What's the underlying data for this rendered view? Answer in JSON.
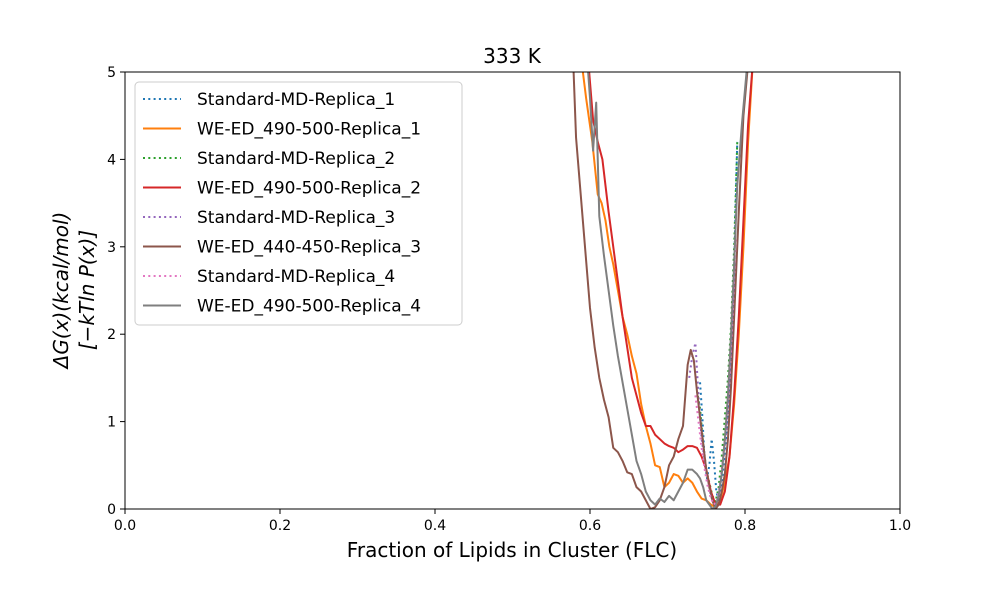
{
  "chart_data": {
    "type": "line",
    "title": "333 K",
    "xlabel": "Fraction of Lipids in Cluster (FLC)",
    "ylabel_line1": "ΔG(x)(kcal/mol)",
    "ylabel_line2": "[−kTln P(x)]",
    "xlim": [
      0.0,
      1.0
    ],
    "ylim": [
      0,
      5
    ],
    "xticks": [
      "0.0",
      "0.2",
      "0.4",
      "0.6",
      "0.8",
      "1.0"
    ],
    "yticks": [
      "0",
      "1",
      "2",
      "3",
      "4",
      "5"
    ],
    "grid": false,
    "legend_position": "top-left",
    "series": [
      {
        "name": "Standard-MD-Replica_1",
        "color": "#1f77b4",
        "style": "dotted",
        "x": [
          0.742,
          0.745,
          0.748,
          0.751,
          0.754,
          0.757,
          0.76,
          0.763,
          0.766,
          0.769,
          0.772,
          0.775,
          0.778,
          0.781,
          0.785,
          0.79
        ],
        "y": [
          1.45,
          1.05,
          0.55,
          0.35,
          0.5,
          0.8,
          0.55,
          0.2,
          0.1,
          0.2,
          0.45,
          0.75,
          1.1,
          1.6,
          2.4,
          4.2
        ]
      },
      {
        "name": "WE-ED_490-500-Replica_1",
        "color": "#ff7f0e",
        "style": "solid",
        "x": [
          0.588,
          0.595,
          0.603,
          0.61,
          0.615,
          0.62,
          0.625,
          0.63,
          0.636,
          0.642,
          0.648,
          0.654,
          0.66,
          0.666,
          0.672,
          0.678,
          0.684,
          0.69,
          0.696,
          0.702,
          0.708,
          0.714,
          0.72,
          0.726,
          0.732,
          0.738,
          0.744,
          0.75,
          0.756,
          0.762,
          0.768,
          0.774,
          0.78,
          0.786,
          0.792,
          0.798,
          0.804,
          0.81
        ],
        "y": [
          5.2,
          4.7,
          4.2,
          3.6,
          3.5,
          3.3,
          3.0,
          2.8,
          2.5,
          2.2,
          2.0,
          1.75,
          1.55,
          1.2,
          0.95,
          0.75,
          0.5,
          0.48,
          0.25,
          0.3,
          0.4,
          0.38,
          0.3,
          0.35,
          0.3,
          0.2,
          0.12,
          0.1,
          0.05,
          0.02,
          0.1,
          0.3,
          0.6,
          1.2,
          2.0,
          3.0,
          4.2,
          5.1
        ]
      },
      {
        "name": "Standard-MD-Replica_2",
        "color": "#2ca02c",
        "style": "dotted",
        "x": [
          0.738,
          0.742,
          0.746,
          0.75,
          0.754,
          0.758,
          0.762,
          0.766,
          0.77,
          0.774,
          0.778,
          0.782,
          0.786,
          0.79
        ],
        "y": [
          1.35,
          1.15,
          0.75,
          0.45,
          0.3,
          0.15,
          0.08,
          0.25,
          0.6,
          1.05,
          1.5,
          2.1,
          3.0,
          4.2
        ]
      },
      {
        "name": "WE-ED_490-500-Replica_2",
        "color": "#d62728",
        "style": "solid",
        "x": [
          0.598,
          0.604,
          0.61,
          0.616,
          0.62,
          0.624,
          0.63,
          0.636,
          0.642,
          0.648,
          0.654,
          0.66,
          0.666,
          0.672,
          0.678,
          0.684,
          0.69,
          0.696,
          0.702,
          0.708,
          0.714,
          0.72,
          0.726,
          0.732,
          0.738,
          0.744,
          0.75,
          0.756,
          0.762,
          0.768,
          0.774,
          0.78,
          0.786,
          0.792,
          0.798,
          0.804,
          0.81
        ],
        "y": [
          5.1,
          4.45,
          4.2,
          4.0,
          3.7,
          3.4,
          3.0,
          2.6,
          2.2,
          1.85,
          1.5,
          1.3,
          1.1,
          0.95,
          0.95,
          0.85,
          0.8,
          0.75,
          0.72,
          0.7,
          0.65,
          0.68,
          0.72,
          0.72,
          0.7,
          0.6,
          0.45,
          0.2,
          0.05,
          0.05,
          0.2,
          0.6,
          1.3,
          2.2,
          3.3,
          4.4,
          5.1
        ]
      },
      {
        "name": "Standard-MD-Replica_3",
        "color": "#9467bd",
        "style": "dotted",
        "x": [
          0.728,
          0.732,
          0.736,
          0.74,
          0.744,
          0.748,
          0.752,
          0.756,
          0.76,
          0.764,
          0.768,
          0.772,
          0.776,
          0.78,
          0.784,
          0.788
        ],
        "y": [
          1.5,
          1.75,
          1.9,
          1.3,
          0.8,
          0.55,
          0.35,
          0.15,
          0.05,
          0.08,
          0.25,
          0.55,
          0.9,
          1.4,
          2.0,
          2.8
        ]
      },
      {
        "name": "WE-ED_440-450-Replica_3",
        "color": "#8c564b",
        "style": "solid",
        "x": [
          0.578,
          0.582,
          0.588,
          0.594,
          0.6,
          0.606,
          0.612,
          0.618,
          0.624,
          0.63,
          0.636,
          0.642,
          0.648,
          0.654,
          0.66,
          0.666,
          0.672,
          0.678,
          0.684,
          0.69,
          0.696,
          0.702,
          0.708,
          0.714,
          0.72,
          0.726,
          0.73,
          0.734,
          0.738,
          0.742,
          0.746,
          0.75,
          0.754,
          0.758,
          0.762,
          0.766,
          0.77,
          0.774,
          0.778,
          0.782,
          0.786,
          0.792,
          0.798,
          0.804
        ],
        "y": [
          5.2,
          4.25,
          3.6,
          2.95,
          2.3,
          1.85,
          1.5,
          1.25,
          1.05,
          0.7,
          0.65,
          0.55,
          0.42,
          0.4,
          0.25,
          0.2,
          0.1,
          0.0,
          0.02,
          0.1,
          0.25,
          0.5,
          0.6,
          0.8,
          0.95,
          1.65,
          1.82,
          1.7,
          1.35,
          1.05,
          0.75,
          0.45,
          0.25,
          0.1,
          0.0,
          0.05,
          0.2,
          0.4,
          0.8,
          1.4,
          2.2,
          3.4,
          4.5,
          5.1
        ]
      },
      {
        "name": "Standard-MD-Replica_4",
        "color": "#e377c2",
        "style": "dotted",
        "x": [
          0.736,
          0.74,
          0.744,
          0.748,
          0.752,
          0.756,
          0.76,
          0.764,
          0.768,
          0.772,
          0.776,
          0.78,
          0.784,
          0.788
        ],
        "y": [
          1.3,
          1.0,
          0.7,
          0.45,
          0.25,
          0.12,
          0.05,
          0.1,
          0.3,
          0.6,
          1.0,
          1.5,
          2.2,
          3.1
        ]
      },
      {
        "name": "WE-ED_490-500-Replica_4",
        "color": "#7f7f7f",
        "style": "solid",
        "x": [
          0.596,
          0.6,
          0.604,
          0.608,
          0.612,
          0.618,
          0.624,
          0.63,
          0.636,
          0.642,
          0.648,
          0.654,
          0.66,
          0.666,
          0.672,
          0.678,
          0.684,
          0.69,
          0.696,
          0.702,
          0.708,
          0.714,
          0.72,
          0.726,
          0.732,
          0.738,
          0.742,
          0.746,
          0.75,
          0.754,
          0.758,
          0.762,
          0.766,
          0.77,
          0.774,
          0.778,
          0.782,
          0.786,
          0.79,
          0.796,
          0.802,
          0.808
        ],
        "y": [
          5.2,
          4.7,
          4.1,
          4.65,
          3.35,
          2.9,
          2.5,
          2.1,
          1.75,
          1.45,
          1.15,
          0.85,
          0.55,
          0.4,
          0.2,
          0.1,
          0.05,
          0.12,
          0.08,
          0.15,
          0.1,
          0.2,
          0.3,
          0.45,
          0.45,
          0.4,
          0.35,
          0.25,
          0.1,
          0.05,
          0.0,
          0.03,
          0.15,
          0.4,
          0.8,
          1.3,
          2.0,
          2.8,
          3.7,
          4.4,
          5.0,
          5.2
        ]
      }
    ]
  }
}
